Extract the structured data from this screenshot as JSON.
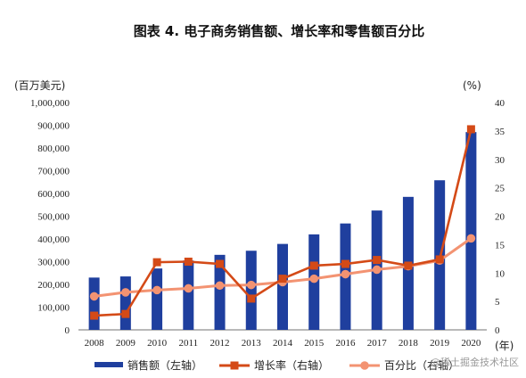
{
  "chart_data": {
    "type": "bar",
    "title": "图表 4. 电子商务销售额、增长率和零售额百分比",
    "left_unit": "(百万美元)",
    "right_unit": "(%)",
    "x_unit": "(年)",
    "categories": [
      "2008",
      "2009",
      "2010",
      "2011",
      "2012",
      "2013",
      "2014",
      "2015",
      "2016",
      "2017",
      "2018",
      "2019",
      "2020"
    ],
    "left_ylim": [
      0,
      1000000
    ],
    "left_ticks": [
      "0",
      "100,000",
      "200,000",
      "300,000",
      "400,000",
      "500,000",
      "600,000",
      "700,000",
      "800,000",
      "900,000",
      "1,000,000"
    ],
    "right_ylim": [
      0,
      40
    ],
    "right_ticks": [
      "0",
      "5",
      "10",
      "15",
      "20",
      "25",
      "30",
      "35",
      "40"
    ],
    "grid": false,
    "legend_position": "bottom",
    "series": [
      {
        "name": "销售额（左轴）",
        "type": "bar",
        "axis": "left",
        "color": "#1f3f9e",
        "values": [
          230000,
          235000,
          270000,
          305000,
          330000,
          348000,
          378000,
          420000,
          468000,
          525000,
          585000,
          658000,
          870000
        ]
      },
      {
        "name": "增长率（右轴）",
        "type": "line",
        "axis": "right",
        "color": "#d44a17",
        "values": [
          2.5,
          2.8,
          11.9,
          12.0,
          11.6,
          5.5,
          9.0,
          11.3,
          11.6,
          12.3,
          11.3,
          12.4,
          35.3
        ]
      },
      {
        "name": "百分比（右轴）",
        "type": "line",
        "axis": "right",
        "color": "#f39372",
        "values": [
          5.9,
          6.6,
          7.0,
          7.3,
          7.8,
          7.9,
          8.4,
          9.0,
          9.8,
          10.6,
          11.2,
          12.2,
          16.1
        ]
      }
    ]
  },
  "watermark": "@稀土掘金技术社区"
}
